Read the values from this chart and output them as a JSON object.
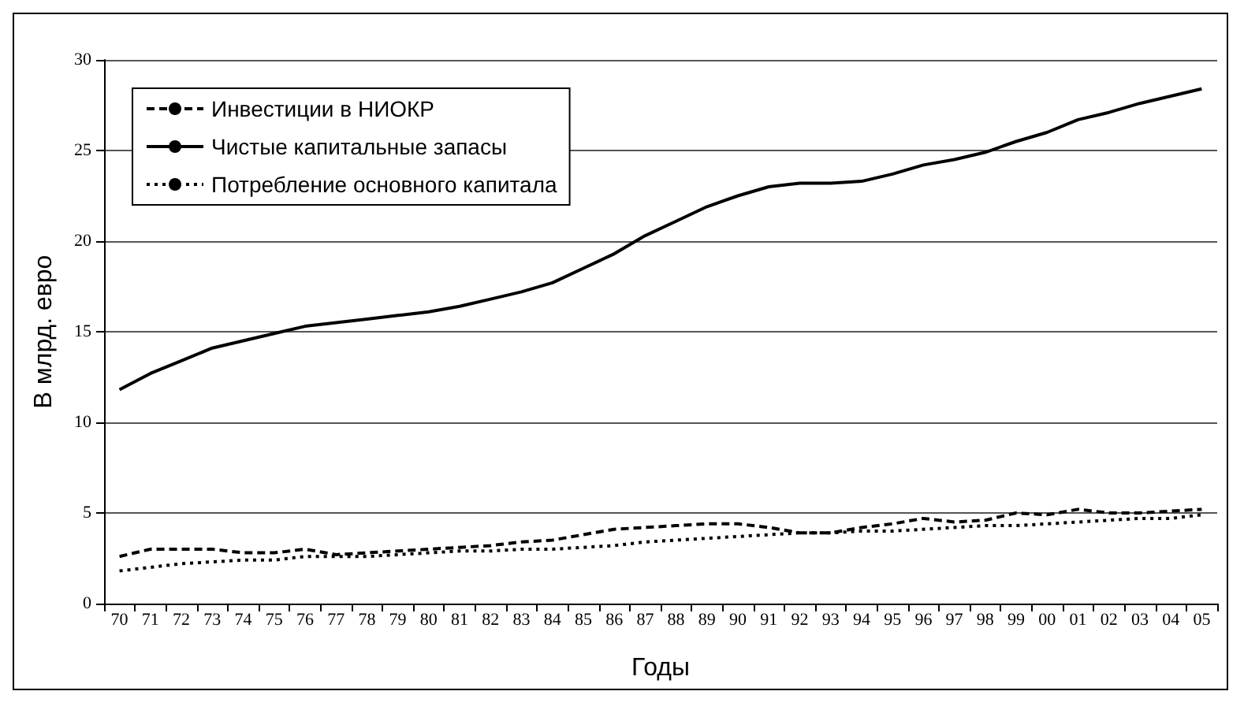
{
  "chart_data": {
    "type": "line",
    "xlabel": "Годы",
    "ylabel": "В млрд. евро",
    "categories": [
      "70",
      "71",
      "72",
      "73",
      "74",
      "75",
      "76",
      "77",
      "78",
      "79",
      "80",
      "81",
      "82",
      "83",
      "84",
      "85",
      "86",
      "87",
      "88",
      "89",
      "90",
      "91",
      "92",
      "93",
      "94",
      "95",
      "96",
      "97",
      "98",
      "99",
      "00",
      "01",
      "02",
      "03",
      "04",
      "05"
    ],
    "series": [
      {
        "name": "Инвестиции в НИОКР",
        "color": "#000000",
        "line_style": "dashed",
        "values": [
          2.6,
          3.0,
          3.0,
          3.0,
          2.8,
          2.8,
          3.0,
          2.7,
          2.8,
          2.9,
          3.0,
          3.1,
          3.2,
          3.4,
          3.5,
          3.8,
          4.1,
          4.2,
          4.3,
          4.4,
          4.4,
          4.2,
          3.9,
          3.9,
          4.2,
          4.4,
          4.7,
          4.5,
          4.6,
          5.0,
          4.9,
          5.2,
          5.0,
          5.0,
          5.1,
          5.2
        ]
      },
      {
        "name": "Чистые капитальные запасы",
        "color": "#000000",
        "line_style": "solid",
        "values": [
          11.8,
          12.7,
          13.4,
          14.1,
          14.5,
          14.9,
          15.3,
          15.5,
          15.7,
          15.9,
          16.1,
          16.4,
          16.8,
          17.2,
          17.7,
          18.5,
          19.3,
          20.3,
          21.1,
          21.9,
          22.5,
          23.0,
          23.2,
          23.2,
          23.3,
          23.7,
          24.2,
          24.5,
          24.9,
          25.5,
          26.0,
          26.7,
          27.1,
          27.6,
          28.0,
          28.4
        ]
      },
      {
        "name": "Потребление основного капитала",
        "color": "#000000",
        "line_style": "dotted",
        "values": [
          1.8,
          2.0,
          2.2,
          2.3,
          2.4,
          2.4,
          2.6,
          2.6,
          2.6,
          2.7,
          2.8,
          2.9,
          2.9,
          3.0,
          3.0,
          3.1,
          3.2,
          3.4,
          3.5,
          3.6,
          3.7,
          3.8,
          3.9,
          3.9,
          4.0,
          4.0,
          4.1,
          4.2,
          4.3,
          4.3,
          4.4,
          4.5,
          4.6,
          4.7,
          4.7,
          4.9
        ]
      }
    ],
    "ylim": [
      0,
      30
    ],
    "yticks": [
      0,
      5,
      10,
      15,
      20,
      25,
      30
    ],
    "grid": "y",
    "legend": "top left",
    "marker": "none"
  }
}
